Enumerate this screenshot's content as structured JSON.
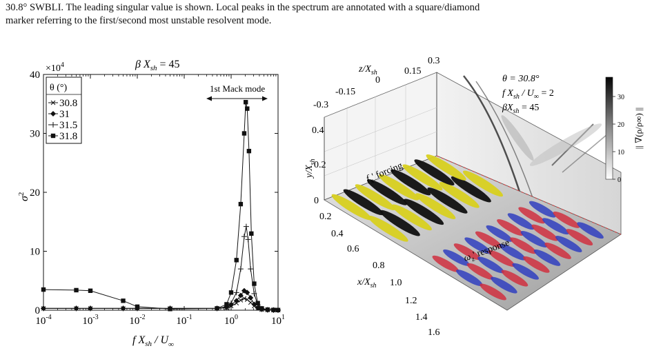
{
  "caption": {
    "line1": "30.8° SWBLI. The leading singular value is shown. Local peaks in the spectrum are annotated with a square/diamond",
    "line2": "marker referring to the first/second most unstable resolvent mode."
  },
  "left_plot": {
    "top_label": "β X",
    "top_label_sub": "sh",
    "top_label_value": " = 45",
    "exponent_label": "×10",
    "exponent_sup": "4",
    "mack_label": "1st Mack mode",
    "ylabel_main": "σ",
    "ylabel_sup": "2",
    "xlabel_main": "f X",
    "xlabel_sub1": "sh",
    "xlabel_mid": " / U",
    "xlabel_sub2": "∞",
    "legend_title": "θ (°)",
    "y_ticks": [
      "0",
      "10",
      "20",
      "30",
      "40"
    ],
    "x_tick_base": "10",
    "x_tick_exps": [
      "-4",
      "-3",
      "-2",
      "-1",
      "0",
      "1"
    ]
  },
  "chart_data": {
    "type": "line",
    "xscale": "log",
    "xlim": [
      0.0001,
      10
    ],
    "ylim": [
      0,
      40
    ],
    "y_multiplier": "×10^4",
    "legend_placement": "top-left",
    "series": [
      {
        "name": "30.8",
        "marker": "x-cross",
        "x": [
          0.0001,
          0.0005,
          0.001,
          0.005,
          0.01,
          0.05,
          0.5,
          0.8,
          1.0,
          1.3,
          1.6,
          1.9,
          2.2,
          2.6,
          3.1,
          3.7,
          4.5,
          6,
          8,
          10
        ],
        "y": [
          0.3,
          0.3,
          0.3,
          0.3,
          0.3,
          0.3,
          0.3,
          0.4,
          0.7,
          1.2,
          1.7,
          2.0,
          1.8,
          1.3,
          0.7,
          0.3,
          0.1,
          0.05,
          0.02,
          0.02
        ]
      },
      {
        "name": "31",
        "marker": "diamond",
        "x": [
          0.0001,
          0.0005,
          0.001,
          0.005,
          0.01,
          0.05,
          0.5,
          0.8,
          1.0,
          1.3,
          1.6,
          1.9,
          2.2,
          2.6,
          3.1,
          3.7,
          4.5,
          6,
          8,
          10
        ],
        "y": [
          0.3,
          0.3,
          0.3,
          0.3,
          0.3,
          0.3,
          0.3,
          0.5,
          0.9,
          1.6,
          2.5,
          3.3,
          3.0,
          2.1,
          1.0,
          0.4,
          0.15,
          0.05,
          0.02,
          0.02
        ]
      },
      {
        "name": "31.5",
        "marker": "plus",
        "x": [
          0.0001,
          0.0005,
          0.001,
          0.005,
          0.01,
          0.05,
          0.5,
          0.8,
          1.0,
          1.3,
          1.6,
          1.9,
          2.1,
          2.3,
          2.6,
          3.1,
          3.7,
          4.5,
          6,
          8,
          10
        ],
        "y": [
          0.3,
          0.3,
          0.3,
          0.3,
          0.3,
          0.3,
          0.3,
          0.6,
          1.2,
          3.0,
          7.0,
          12.5,
          14.2,
          12.0,
          7.0,
          2.8,
          0.9,
          0.25,
          0.08,
          0.03,
          0.02
        ]
      },
      {
        "name": "31.8",
        "marker": "square",
        "x": [
          0.0001,
          0.0005,
          0.001,
          0.005,
          0.01,
          0.05,
          0.5,
          0.8,
          1.0,
          1.3,
          1.6,
          1.9,
          2.05,
          2.2,
          2.4,
          2.7,
          3.1,
          3.7,
          4.5,
          6,
          8,
          10
        ],
        "y": [
          3.5,
          3.4,
          3.3,
          1.6,
          0.6,
          0.2,
          0.3,
          1.0,
          3.0,
          8.5,
          18.0,
          30.0,
          35.3,
          34.2,
          27.0,
          13.0,
          4.5,
          1.2,
          0.3,
          0.1,
          0.05,
          0.03
        ]
      }
    ],
    "annotations": [
      "1st Mack mode"
    ]
  },
  "right_figure": {
    "title_theta": "θ = 30.8°",
    "title_freq": "f X",
    "title_freq_sub1": "sh",
    "title_freq_mid": " / U",
    "title_freq_sub2": "∞",
    "title_freq_val": " = 2",
    "title_beta": "βX",
    "title_beta_sub": "sh",
    "title_beta_val": " = 45",
    "z_label": "z/X",
    "z_label_sub": "sh",
    "z_ticks": [
      "-0.3",
      "-0.15",
      "0",
      "0.15",
      "0.3"
    ],
    "y_label": "y/X",
    "y_label_sub": "sh",
    "y_ticks": [
      "0",
      "0.2",
      "0.4"
    ],
    "x_label": "x/X",
    "x_label_sub": "sh",
    "x_ticks": [
      "0.2",
      "0.4",
      "0.6",
      "0.8",
      "1.0",
      "1.2",
      "1.4",
      "1.6"
    ],
    "forcing_label": "f",
    "forcing_sub": "x",
    "forcing_rest": "' forcing",
    "response_label": "ω",
    "response_sub": "z",
    "response_rest": "' response",
    "colorbar_ticks": [
      "0",
      "10",
      "20",
      "30"
    ],
    "colorbar_label": "|| ∇(ρ/ρ∞) ||",
    "colors": {
      "forcing": "#d8d020",
      "forcing_dark": "#101010",
      "response_pos": "#d03040",
      "response_neg": "#3040c0"
    }
  }
}
